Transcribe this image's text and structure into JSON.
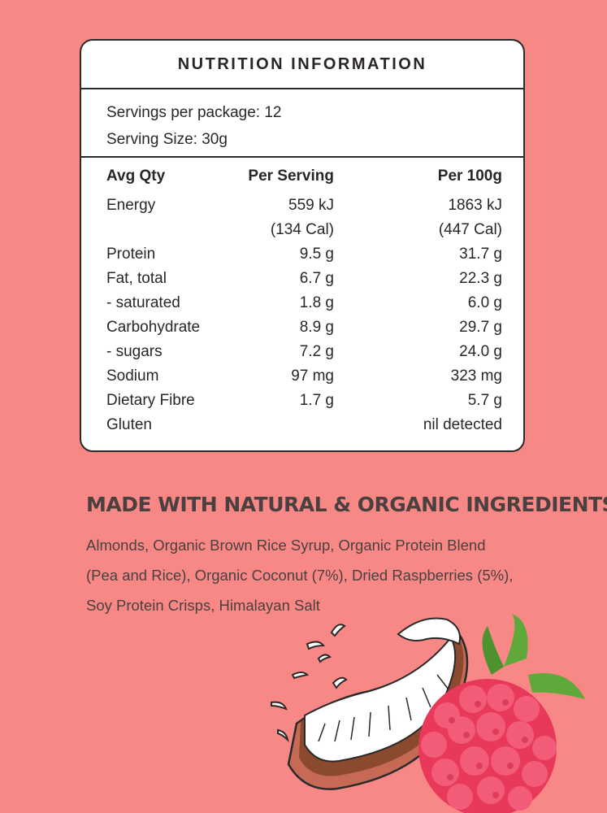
{
  "nutrition": {
    "title": "NUTRITION INFORMATION",
    "servings_per_package": "Servings per package: 12",
    "serving_size": "Serving Size: 30g",
    "header": {
      "col1": "Avg Qty",
      "col2": "Per Serving",
      "col3": "Per 100g"
    },
    "rows": [
      {
        "name": "Energy",
        "per_serving": "559 kJ",
        "per_100g": "1863 kJ"
      },
      {
        "name": "",
        "per_serving": "(134 Cal)",
        "per_100g": "(447 Cal)"
      },
      {
        "name": "Protein",
        "per_serving": "9.5 g",
        "per_100g": "31.7 g"
      },
      {
        "name": "Fat, total",
        "per_serving": "6.7 g",
        "per_100g": "22.3 g"
      },
      {
        "name": "- saturated",
        "per_serving": "1.8 g",
        "per_100g": "6.0 g"
      },
      {
        "name": "Carbohydrate",
        "per_serving": "8.9 g",
        "per_100g": "29.7 g"
      },
      {
        "name": "- sugars",
        "per_serving": "7.2 g",
        "per_100g": "24.0 g"
      },
      {
        "name": "Sodium",
        "per_serving": "97 mg",
        "per_100g": "323 mg"
      },
      {
        "name": "Dietary Fibre",
        "per_serving": "1.7 g",
        "per_100g": "5.7 g"
      },
      {
        "name": "Gluten",
        "per_serving": "",
        "per_100g": "nil detected"
      }
    ]
  },
  "ingredients": {
    "title": "MADE WITH NATURAL & ORGANIC INGREDIENTS",
    "lines": [
      "Almonds, Organic Brown Rice Syrup, Organic Protein Blend",
      "(Pea and Rice), Organic Coconut (7%), Dried Raspberries (5%),",
      "Soy Protein Crisps, Himalayan Salt"
    ]
  },
  "illustration": {
    "items": [
      "coconut-icon",
      "raspberry-icon"
    ],
    "colors": {
      "background": "#F88885",
      "raspberry": "#E8395A",
      "leaf": "#5FA83A",
      "coconut_shell": "#8B4A2E"
    }
  }
}
